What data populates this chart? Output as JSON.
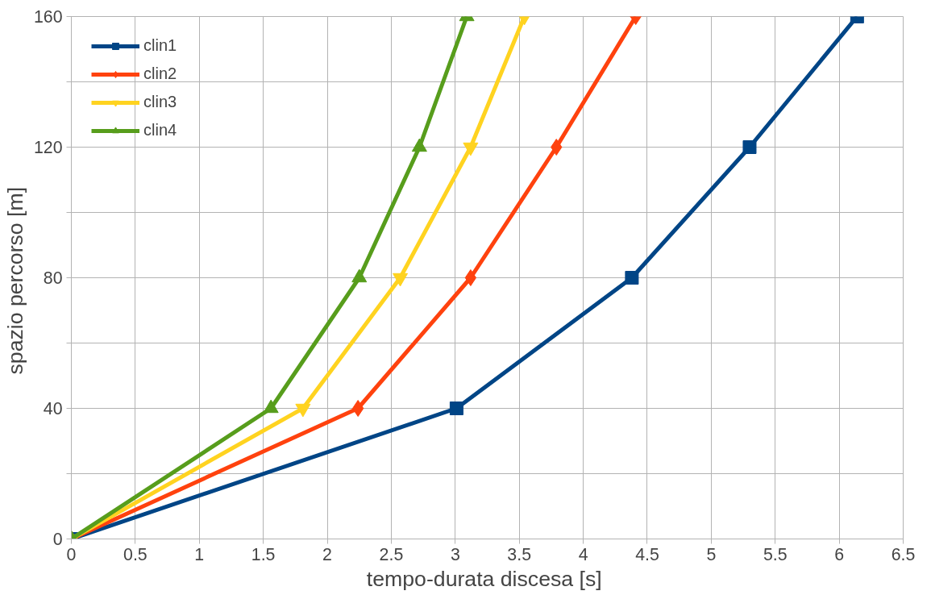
{
  "chart_data": {
    "type": "line",
    "xlabel": "tempo-durata discesa  [s]",
    "ylabel": "spazio percorso  [m]",
    "xlim": [
      0,
      6.5
    ],
    "xticks": [
      0,
      0.5,
      1,
      1.5,
      2,
      2.5,
      3,
      3.5,
      4,
      4.5,
      5,
      5.5,
      6,
      6.5
    ],
    "ylim": [
      0,
      160
    ],
    "yticks": [
      0,
      {
        "value": 20,
        "label": null
      },
      40,
      {
        "value": 60,
        "label": null
      },
      80,
      {
        "value": 100,
        "label": null
      },
      120,
      {
        "value": 140,
        "label": null
      },
      160
    ],
    "grid": true,
    "legend": "top left",
    "line_style": "solid",
    "series": [
      {
        "name": "clin1",
        "color": "#004586",
        "marker": "square",
        "x": [
          0,
          3.01,
          4.38,
          5.3,
          6.14
        ],
        "values": [
          0,
          40,
          80,
          120,
          160
        ]
      },
      {
        "name": "clin2",
        "color": "#ff420e",
        "marker": "diamond",
        "x": [
          0,
          2.24,
          3.12,
          3.79,
          4.41
        ],
        "values": [
          0,
          40,
          80,
          120,
          160
        ]
      },
      {
        "name": "clin3",
        "color": "#ffd320",
        "marker": "triangle_down",
        "x": [
          0,
          1.81,
          2.57,
          3.12,
          3.54
        ],
        "values": [
          0,
          40,
          80,
          120,
          160
        ]
      },
      {
        "name": "clin4",
        "color": "#579d1c",
        "marker": "triangle",
        "x": [
          0,
          1.56,
          2.25,
          2.72,
          3.09
        ],
        "values": [
          0,
          40,
          80,
          120,
          160
        ]
      }
    ]
  }
}
